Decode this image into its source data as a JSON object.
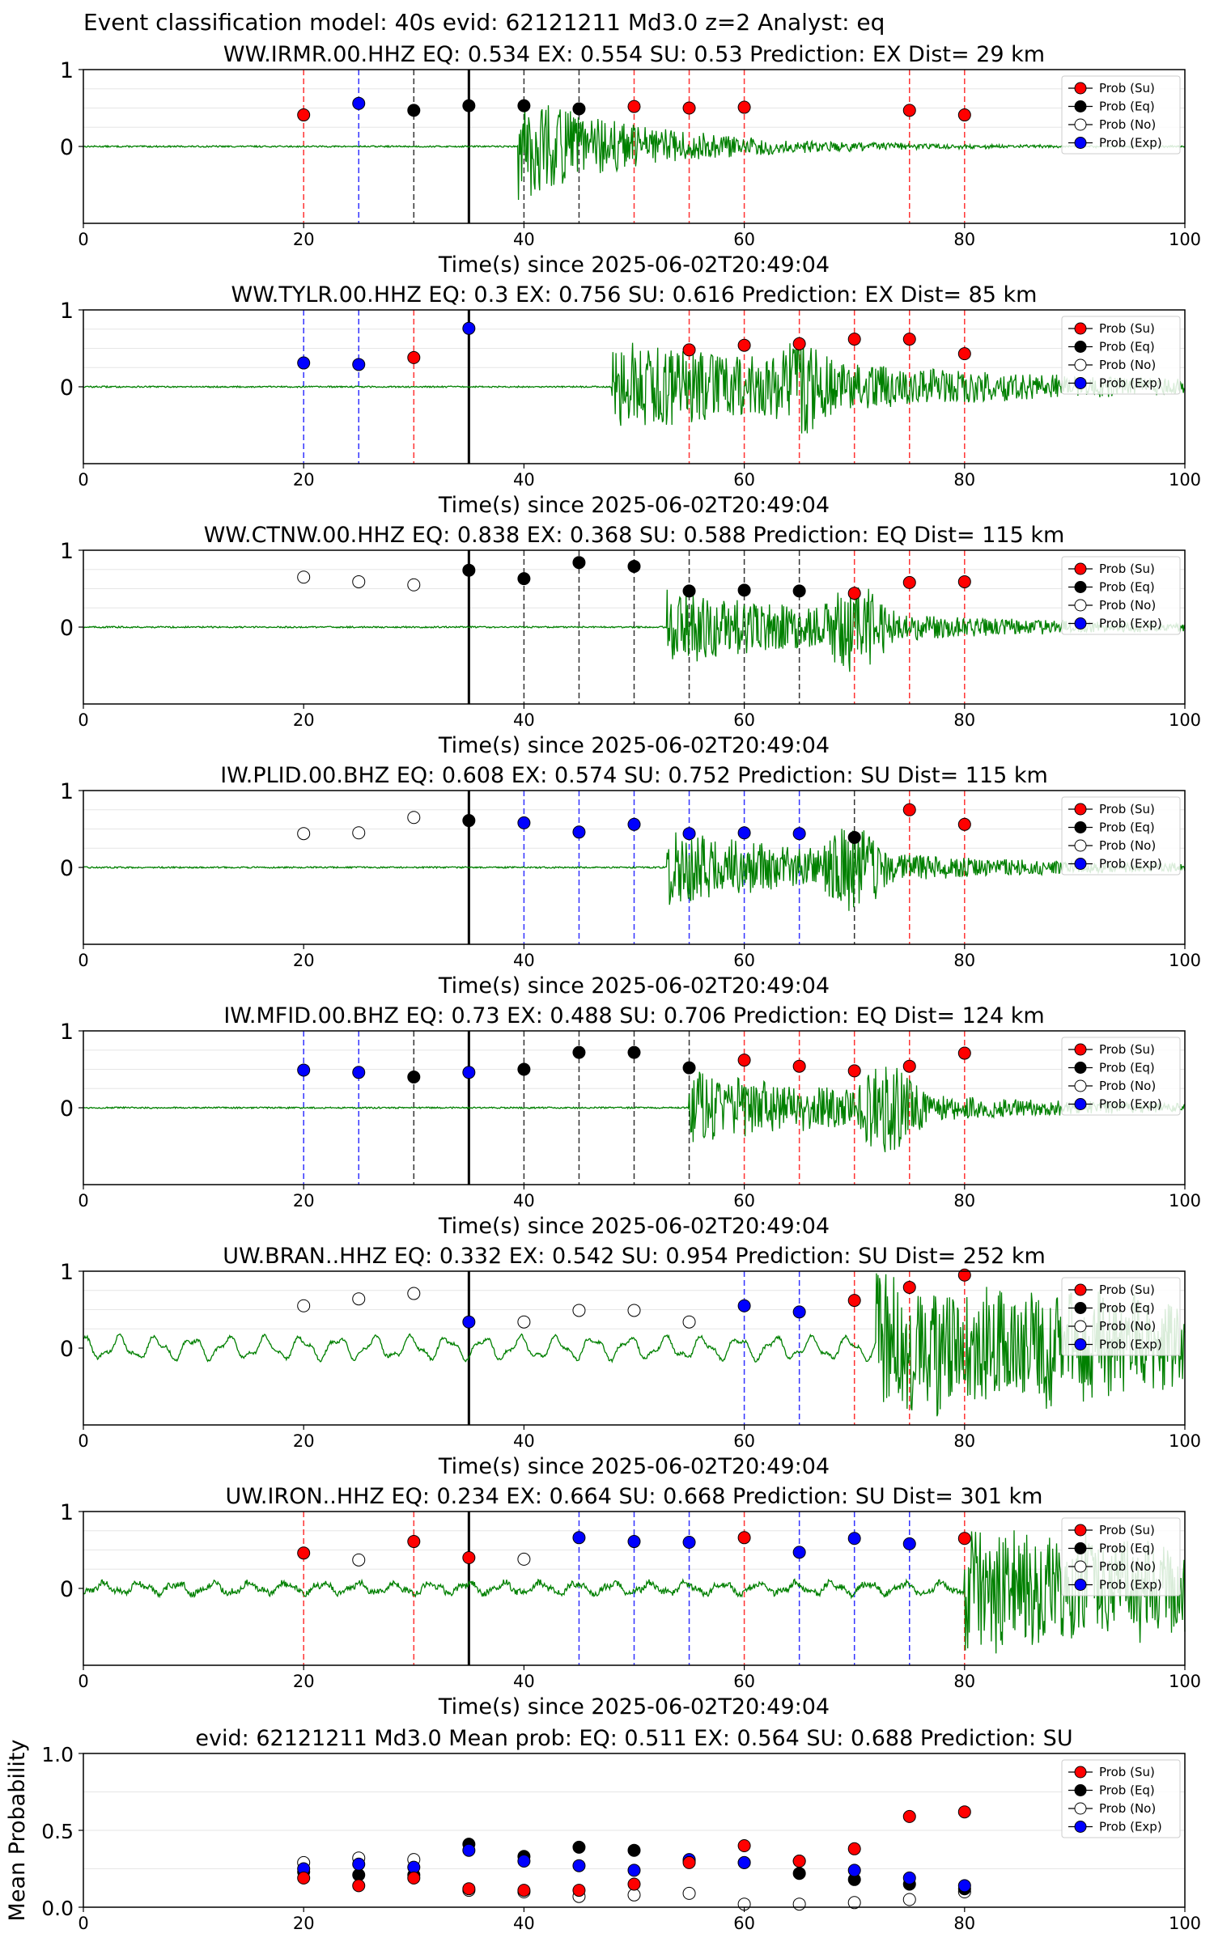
{
  "figure": {
    "suptitle": "Event classification model: 40s evid: 62121211 Md3.0 z=2 Analyst: eq"
  },
  "legend_items": [
    {
      "label": "Prob (Su)",
      "fill": "#ff0000",
      "stroke": "#000000"
    },
    {
      "label": "Prob (Eq)",
      "fill": "#000000",
      "stroke": "#000000"
    },
    {
      "label": "Prob (No)",
      "fill": "#ffffff",
      "stroke": "#000000"
    },
    {
      "label": "Prob (Exp)",
      "fill": "#0000ff",
      "stroke": "#000000"
    }
  ],
  "colors": {
    "waveform": "#008000",
    "su": "#ff0000",
    "eq": "#000000",
    "no": "#ffffff",
    "exp": "#0000ff",
    "vline_su": "#ff0000",
    "vline_eq": "#000000",
    "vline_exp": "#0000ff",
    "origin_line": "#000000"
  },
  "chart_data": [
    {
      "type": "scatter",
      "title": "WW.IRMR.00.HHZ   EQ: 0.534  EX: 0.554  SU: 0.53   Prediction: EX    Dist= 29 km",
      "xlabel": "Time(s) since 2025-06-02T20:49:04",
      "xlim": [
        0,
        100
      ],
      "ylim": [
        -1,
        1
      ],
      "xticks": [
        0,
        20,
        40,
        60,
        80,
        100
      ],
      "yticks": [
        0,
        1
      ],
      "origin_time": 35,
      "waveform": {
        "onset": 39.5,
        "peak": 0.7,
        "decay": 12,
        "noise": 0.01,
        "microseism": 0
      },
      "points": [
        {
          "x": 20,
          "y": 0.41,
          "class": "su"
        },
        {
          "x": 25,
          "y": 0.56,
          "class": "exp"
        },
        {
          "x": 30,
          "y": 0.47,
          "class": "eq"
        },
        {
          "x": 35,
          "y": 0.53,
          "class": "eq"
        },
        {
          "x": 40,
          "y": 0.53,
          "class": "eq"
        },
        {
          "x": 45,
          "y": 0.49,
          "class": "eq"
        },
        {
          "x": 50,
          "y": 0.52,
          "class": "su"
        },
        {
          "x": 55,
          "y": 0.5,
          "class": "su"
        },
        {
          "x": 60,
          "y": 0.51,
          "class": "su"
        },
        {
          "x": 75,
          "y": 0.47,
          "class": "su"
        },
        {
          "x": 80,
          "y": 0.41,
          "class": "su"
        }
      ]
    },
    {
      "type": "scatter",
      "title": "WW.TYLR.00.HHZ   EQ: 0.3  EX: 0.756  SU: 0.616   Prediction: EX    Dist= 85 km",
      "xlabel": "Time(s) since 2025-06-02T20:49:04",
      "xlim": [
        0,
        100
      ],
      "ylim": [
        -1,
        1
      ],
      "xticks": [
        0,
        20,
        40,
        60,
        80,
        100
      ],
      "yticks": [
        0,
        1
      ],
      "origin_time": 35,
      "waveform": {
        "onset": 48,
        "peak": 0.6,
        "decay": 30,
        "noise": 0.01,
        "microseism": 0,
        "burst": 65
      },
      "points": [
        {
          "x": 20,
          "y": 0.31,
          "class": "exp"
        },
        {
          "x": 25,
          "y": 0.29,
          "class": "exp"
        },
        {
          "x": 30,
          "y": 0.38,
          "class": "su"
        },
        {
          "x": 35,
          "y": 0.76,
          "class": "exp"
        },
        {
          "x": 55,
          "y": 0.48,
          "class": "su"
        },
        {
          "x": 60,
          "y": 0.54,
          "class": "su"
        },
        {
          "x": 65,
          "y": 0.56,
          "class": "su"
        },
        {
          "x": 70,
          "y": 0.62,
          "class": "su"
        },
        {
          "x": 75,
          "y": 0.62,
          "class": "su"
        },
        {
          "x": 80,
          "y": 0.43,
          "class": "su"
        }
      ]
    },
    {
      "type": "scatter",
      "title": "WW.CTNW.00.HHZ   EQ: 0.838  EX: 0.368  SU: 0.588   Prediction: EQ    Dist= 115 km",
      "xlabel": "Time(s) since 2025-06-02T20:49:04",
      "xlim": [
        0,
        100
      ],
      "ylim": [
        -1,
        1
      ],
      "xticks": [
        0,
        20,
        40,
        60,
        80,
        100
      ],
      "yticks": [
        0,
        1
      ],
      "origin_time": 35,
      "waveform": {
        "onset": 53,
        "peak": 0.5,
        "decay": 20,
        "noise": 0.01,
        "microseism": 0,
        "burst": 70
      },
      "points": [
        {
          "x": 20,
          "y": 0.65,
          "class": "no"
        },
        {
          "x": 25,
          "y": 0.59,
          "class": "no"
        },
        {
          "x": 30,
          "y": 0.55,
          "class": "no"
        },
        {
          "x": 35,
          "y": 0.74,
          "class": "eq"
        },
        {
          "x": 40,
          "y": 0.63,
          "class": "eq"
        },
        {
          "x": 45,
          "y": 0.84,
          "class": "eq"
        },
        {
          "x": 50,
          "y": 0.79,
          "class": "eq"
        },
        {
          "x": 55,
          "y": 0.47,
          "class": "eq"
        },
        {
          "x": 60,
          "y": 0.48,
          "class": "eq"
        },
        {
          "x": 65,
          "y": 0.47,
          "class": "eq"
        },
        {
          "x": 70,
          "y": 0.44,
          "class": "su"
        },
        {
          "x": 75,
          "y": 0.58,
          "class": "su"
        },
        {
          "x": 80,
          "y": 0.59,
          "class": "su"
        }
      ]
    },
    {
      "type": "scatter",
      "title": "IW.PLID.00.BHZ   EQ: 0.608  EX: 0.574  SU: 0.752   Prediction: SU    Dist= 115 km",
      "xlabel": "Time(s) since 2025-06-02T20:49:04",
      "xlim": [
        0,
        100
      ],
      "ylim": [
        -1,
        1
      ],
      "xticks": [
        0,
        20,
        40,
        60,
        80,
        100
      ],
      "yticks": [
        0,
        1
      ],
      "origin_time": 35,
      "waveform": {
        "onset": 53,
        "peak": 0.5,
        "decay": 20,
        "noise": 0.01,
        "microseism": 0,
        "burst": 70
      },
      "points": [
        {
          "x": 20,
          "y": 0.44,
          "class": "no"
        },
        {
          "x": 25,
          "y": 0.45,
          "class": "no"
        },
        {
          "x": 30,
          "y": 0.65,
          "class": "no"
        },
        {
          "x": 35,
          "y": 0.61,
          "class": "eq"
        },
        {
          "x": 40,
          "y": 0.58,
          "class": "exp"
        },
        {
          "x": 45,
          "y": 0.46,
          "class": "exp"
        },
        {
          "x": 50,
          "y": 0.56,
          "class": "exp"
        },
        {
          "x": 55,
          "y": 0.44,
          "class": "exp"
        },
        {
          "x": 60,
          "y": 0.45,
          "class": "exp"
        },
        {
          "x": 65,
          "y": 0.44,
          "class": "exp"
        },
        {
          "x": 70,
          "y": 0.39,
          "class": "eq"
        },
        {
          "x": 75,
          "y": 0.75,
          "class": "su"
        },
        {
          "x": 80,
          "y": 0.56,
          "class": "su"
        }
      ]
    },
    {
      "type": "scatter",
      "title": "IW.MFID.00.BHZ   EQ: 0.73  EX: 0.488  SU: 0.706   Prediction: EQ    Dist= 124 km",
      "xlabel": "Time(s) since 2025-06-02T20:49:04",
      "xlim": [
        0,
        100
      ],
      "ylim": [
        -1,
        1
      ],
      "xticks": [
        0,
        20,
        40,
        60,
        80,
        100
      ],
      "yticks": [
        0,
        1
      ],
      "origin_time": 35,
      "waveform": {
        "onset": 55,
        "peak": 0.5,
        "decay": 20,
        "noise": 0.01,
        "microseism": 0,
        "burst": 73
      },
      "points": [
        {
          "x": 20,
          "y": 0.49,
          "class": "exp"
        },
        {
          "x": 25,
          "y": 0.46,
          "class": "exp"
        },
        {
          "x": 30,
          "y": 0.4,
          "class": "eq"
        },
        {
          "x": 35,
          "y": 0.46,
          "class": "exp"
        },
        {
          "x": 40,
          "y": 0.5,
          "class": "eq"
        },
        {
          "x": 45,
          "y": 0.72,
          "class": "eq"
        },
        {
          "x": 50,
          "y": 0.72,
          "class": "eq"
        },
        {
          "x": 55,
          "y": 0.52,
          "class": "eq"
        },
        {
          "x": 60,
          "y": 0.62,
          "class": "su"
        },
        {
          "x": 65,
          "y": 0.54,
          "class": "su"
        },
        {
          "x": 70,
          "y": 0.48,
          "class": "su"
        },
        {
          "x": 75,
          "y": 0.54,
          "class": "su"
        },
        {
          "x": 80,
          "y": 0.71,
          "class": "su"
        }
      ]
    },
    {
      "type": "scatter",
      "title": "UW.BRAN..HHZ   EQ: 0.332  EX: 0.542  SU: 0.954   Prediction: SU    Dist= 252 km",
      "xlabel": "Time(s) since 2025-06-02T20:49:04",
      "xlim": [
        0,
        100
      ],
      "ylim": [
        -1,
        1
      ],
      "xticks": [
        0,
        20,
        40,
        60,
        80,
        100
      ],
      "yticks": [
        0,
        1
      ],
      "origin_time": 35,
      "waveform": {
        "onset": 72,
        "peak": 0.9,
        "decay": 60,
        "noise": 0.02,
        "microseism": 0.12
      },
      "points": [
        {
          "x": 20,
          "y": 0.55,
          "class": "no"
        },
        {
          "x": 25,
          "y": 0.64,
          "class": "no"
        },
        {
          "x": 30,
          "y": 0.71,
          "class": "no"
        },
        {
          "x": 35,
          "y": 0.34,
          "class": "exp"
        },
        {
          "x": 40,
          "y": 0.34,
          "class": "no"
        },
        {
          "x": 45,
          "y": 0.49,
          "class": "no"
        },
        {
          "x": 50,
          "y": 0.49,
          "class": "no"
        },
        {
          "x": 55,
          "y": 0.34,
          "class": "no"
        },
        {
          "x": 60,
          "y": 0.55,
          "class": "exp"
        },
        {
          "x": 65,
          "y": 0.47,
          "class": "exp"
        },
        {
          "x": 70,
          "y": 0.62,
          "class": "su"
        },
        {
          "x": 75,
          "y": 0.79,
          "class": "su"
        },
        {
          "x": 80,
          "y": 0.95,
          "class": "su"
        }
      ]
    },
    {
      "type": "scatter",
      "title": "UW.IRON..HHZ   EQ: 0.234  EX: 0.664  SU: 0.668   Prediction: SU    Dist= 301 km",
      "xlabel": "Time(s) since 2025-06-02T20:49:04",
      "xlim": [
        0,
        100
      ],
      "ylim": [
        -1,
        1
      ],
      "xticks": [
        0,
        20,
        40,
        60,
        80,
        100
      ],
      "yticks": [
        0,
        1
      ],
      "origin_time": 35,
      "waveform": {
        "onset": 80,
        "peak": 0.8,
        "decay": 60,
        "noise": 0.04,
        "microseism": 0.06
      },
      "points": [
        {
          "x": 20,
          "y": 0.46,
          "class": "su"
        },
        {
          "x": 25,
          "y": 0.37,
          "class": "no"
        },
        {
          "x": 30,
          "y": 0.61,
          "class": "su"
        },
        {
          "x": 35,
          "y": 0.4,
          "class": "su"
        },
        {
          "x": 40,
          "y": 0.38,
          "class": "no"
        },
        {
          "x": 45,
          "y": 0.66,
          "class": "exp"
        },
        {
          "x": 50,
          "y": 0.61,
          "class": "exp"
        },
        {
          "x": 55,
          "y": 0.6,
          "class": "exp"
        },
        {
          "x": 60,
          "y": 0.66,
          "class": "su"
        },
        {
          "x": 65,
          "y": 0.47,
          "class": "exp"
        },
        {
          "x": 70,
          "y": 0.65,
          "class": "exp"
        },
        {
          "x": 75,
          "y": 0.58,
          "class": "exp"
        },
        {
          "x": 80,
          "y": 0.65,
          "class": "su"
        }
      ]
    },
    {
      "type": "scatter",
      "title": "evid: 62121211  Md3.0   Mean prob:   EQ: 0.511  EX: 0.564  SU: 0.688   Prediction: SU",
      "xlabel": "",
      "ylabel": "Mean Probability",
      "xlim": [
        0,
        100
      ],
      "ylim": [
        0,
        1
      ],
      "xticks": [
        0,
        20,
        40,
        60,
        80,
        100
      ],
      "yticks": [
        0,
        0.5,
        1
      ],
      "ytick_labels": [
        "0.0",
        "0.5",
        "1.0"
      ],
      "x": [
        20,
        25,
        30,
        35,
        40,
        45,
        50,
        55,
        60,
        65,
        70,
        75,
        80
      ],
      "series": [
        {
          "name": "Prob (No)",
          "class": "no",
          "values": [
            0.29,
            0.32,
            0.31,
            0.11,
            0.1,
            0.07,
            0.08,
            0.09,
            0.02,
            0.02,
            0.03,
            0.05,
            0.1
          ]
        },
        {
          "name": "Prob (Eq)",
          "class": "eq",
          "values": [
            0.23,
            0.21,
            0.21,
            0.41,
            0.33,
            0.39,
            0.37,
            0.3,
            0.29,
            0.22,
            0.18,
            0.15,
            0.12
          ]
        },
        {
          "name": "Prob (Exp)",
          "class": "exp",
          "values": [
            0.25,
            0.28,
            0.26,
            0.37,
            0.3,
            0.27,
            0.24,
            0.31,
            0.29,
            0.3,
            0.24,
            0.19,
            0.14
          ]
        },
        {
          "name": "Prob (Su)",
          "class": "su",
          "values": [
            0.19,
            0.14,
            0.19,
            0.12,
            0.11,
            0.11,
            0.15,
            0.29,
            0.4,
            0.3,
            0.38,
            0.59,
            0.62
          ]
        }
      ]
    }
  ]
}
